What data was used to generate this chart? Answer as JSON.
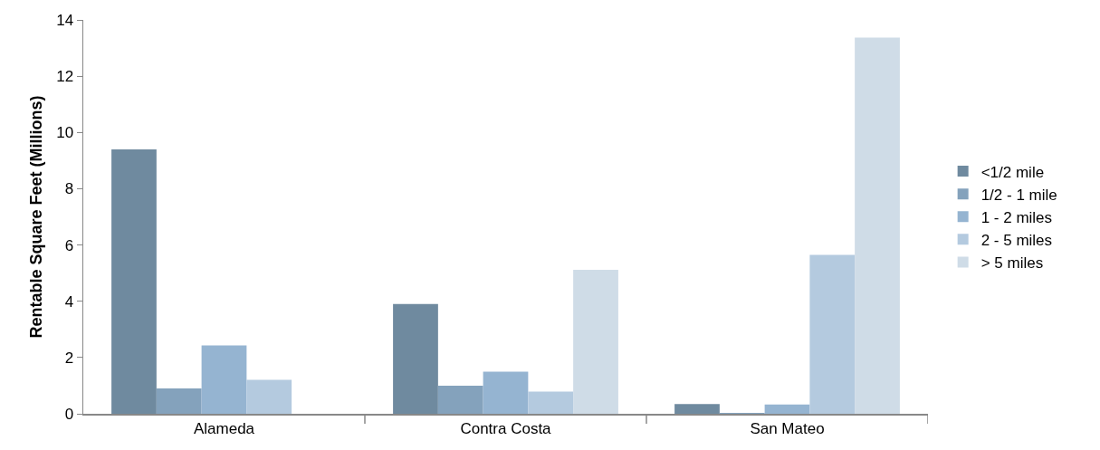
{
  "chart_data": {
    "type": "bar",
    "ylabel": "Rentable Square Feet (Millions)",
    "categories": [
      "Alameda",
      "Contra Costa",
      "San Mateo"
    ],
    "series": [
      {
        "name": "<1/2 mile",
        "color": "#6f8a9f",
        "values": [
          9.4,
          3.9,
          0.35
        ]
      },
      {
        "name": "1/2 - 1 mile",
        "color": "#84a2bc",
        "values": [
          0.9,
          1.0,
          0.03
        ]
      },
      {
        "name": "1 - 2 miles",
        "color": "#95b4d1",
        "values": [
          2.43,
          1.5,
          0.33
        ]
      },
      {
        "name": "2 - 5 miles",
        "color": "#b4cadf",
        "values": [
          1.21,
          0.79,
          5.65
        ]
      },
      {
        "name": "> 5 miles",
        "color": "#cfdce7",
        "values": [
          null,
          5.12,
          13.37
        ]
      }
    ],
    "ylim": [
      0,
      14
    ],
    "yticks": [
      0,
      2,
      4,
      6,
      8,
      10,
      12,
      14
    ],
    "grid": false,
    "legend": "right"
  }
}
